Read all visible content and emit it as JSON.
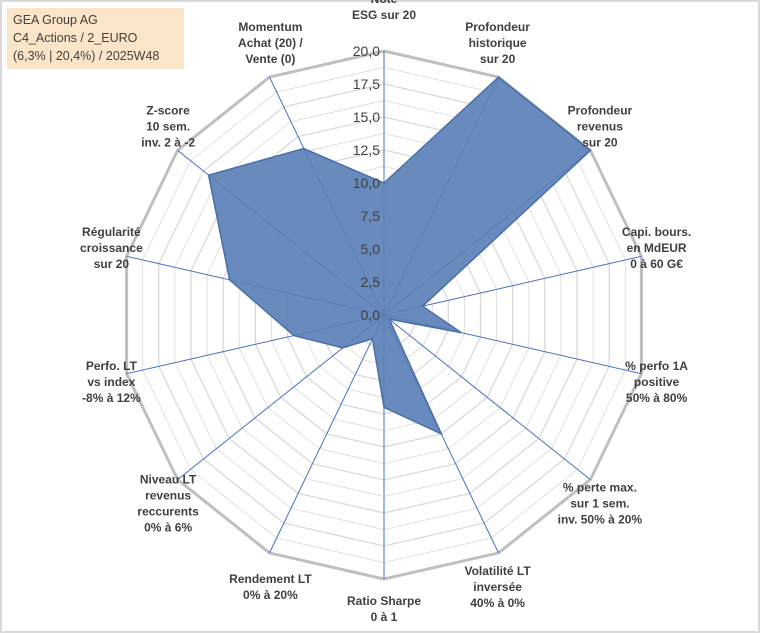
{
  "chart_data": {
    "type": "radar",
    "title_lines": [
      "GEA Group AG",
      "C4_Actions / 2_EURO",
      "(6,3% | 20,4%) / 2025W48"
    ],
    "rmax": 20,
    "ticks": [
      "0,0",
      "2,5",
      "5,0",
      "7,5",
      "10,0",
      "12,5",
      "15,0",
      "17,5",
      "20,0"
    ],
    "axes": [
      {
        "label": [
          "Note",
          "ESG sur 20"
        ],
        "value": 10.0
      },
      {
        "label": [
          "Profondeur",
          "historique",
          "sur 20"
        ],
        "value": 20.0
      },
      {
        "label": [
          "Profondeur",
          "revenus",
          "sur 20"
        ],
        "value": 20.0
      },
      {
        "label": [
          "Capi. bours.",
          "en MdEUR",
          "0 à 60 G€"
        ],
        "value": 3.0
      },
      {
        "label": [
          "% perfo 1A",
          "positive",
          "50% à 80%"
        ],
        "value": 6.0
      },
      {
        "label": [
          "% perte max.",
          "sur 1 sem.",
          "inv. 50% à 20%"
        ],
        "value": 0.5
      },
      {
        "label": [
          "Volatilité LT",
          "inversée",
          "40% à 0%"
        ],
        "value": 10.0
      },
      {
        "label": [
          "Ratio Sharpe",
          "0 à 1"
        ],
        "value": 7.0
      },
      {
        "label": [
          "Rendement LT",
          "0% à 20%"
        ],
        "value": 2.0
      },
      {
        "label": [
          "Niveau LT",
          "revenus",
          "reccurents",
          "0% à 6%"
        ],
        "value": 4.0
      },
      {
        "label": [
          "Perfo. LT",
          "vs index",
          "-8% à 12%"
        ],
        "value": 7.0
      },
      {
        "label": [
          "Régularité",
          "croissance",
          "sur 20"
        ],
        "value": 12.0
      },
      {
        "label": [
          "Z-score",
          "10 sem.",
          "inv. 2 à -2"
        ],
        "value": 17.0
      },
      {
        "label": [
          "Momentum",
          "Achat (20) /",
          "Vente (0)"
        ],
        "value": 14.0
      }
    ],
    "colors": {
      "fill": "#5b80b6",
      "stroke": "#4a6fa8",
      "grid": "#d9d9d9",
      "spoke": "#4472c4"
    }
  }
}
